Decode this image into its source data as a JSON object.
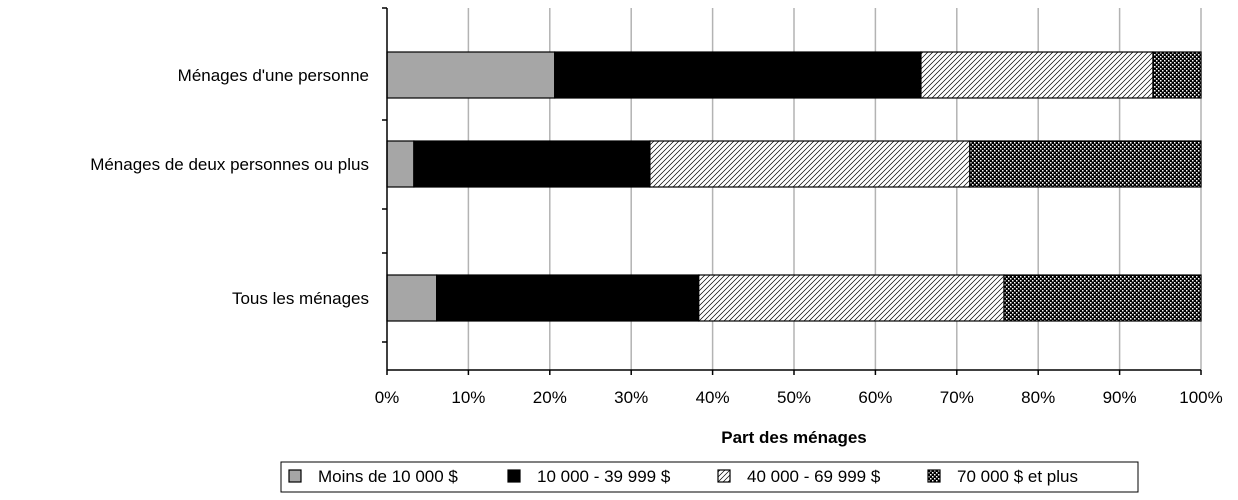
{
  "chart_data": {
    "type": "bar",
    "orientation": "horizontal",
    "stacked": true,
    "normalized_percent": true,
    "title": "",
    "xlabel": "Part des ménages",
    "ylabel": "",
    "xlim": [
      0,
      100
    ],
    "grid": true,
    "legend_position": "bottom",
    "ticks": [
      "0%",
      "10%",
      "20%",
      "30%",
      "40%",
      "50%",
      "60%",
      "70%",
      "80%",
      "90%",
      "100%"
    ],
    "categories": [
      "Ménages d'une personne",
      "Ménages de deux personnes ou plus",
      "Tous les ménages"
    ],
    "series": [
      {
        "name": "Moins de 10 000 $",
        "values": [
          20.6,
          3.3,
          6.1
        ],
        "pattern": "gray",
        "color": "#a6a6a6"
      },
      {
        "name": "10 000 - 39 999 $",
        "values": [
          45.0,
          29.0,
          32.2
        ],
        "pattern": "black",
        "color": "#000000"
      },
      {
        "name": "40 000 - 69 999 $",
        "values": [
          28.5,
          39.3,
          37.5
        ],
        "pattern": "diagonal",
        "color": "#ffffff"
      },
      {
        "name": "70 000 $ et plus",
        "values": [
          5.9,
          28.4,
          24.2
        ],
        "pattern": "checker",
        "color": "#000000"
      }
    ]
  }
}
